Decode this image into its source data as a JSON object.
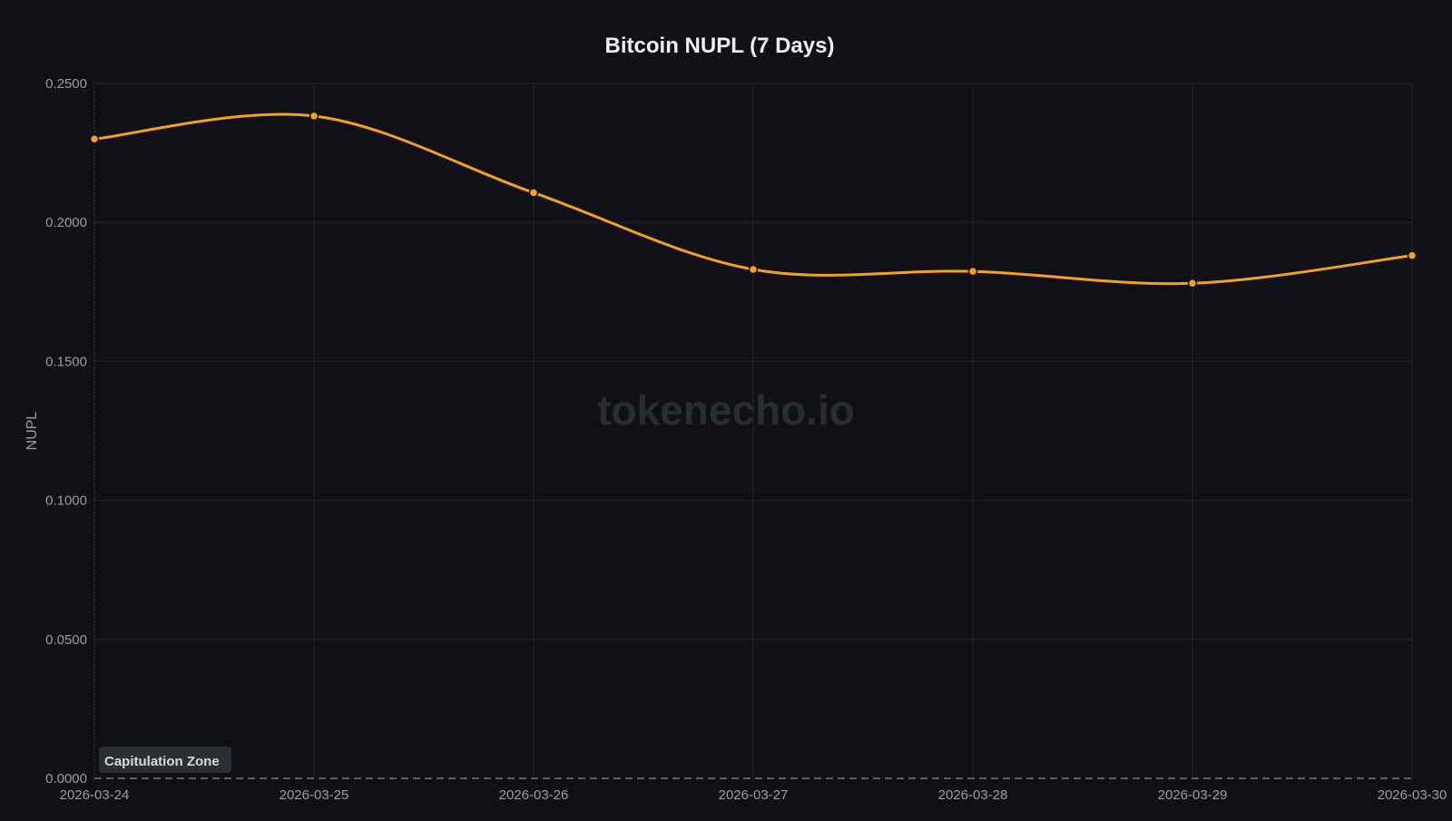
{
  "chart_data": {
    "type": "line",
    "title": "Bitcoin NUPL (7 Days)",
    "xlabel": "",
    "ylabel": "NUPL",
    "categories": [
      "2026-03-24",
      "2026-03-25",
      "2026-03-26",
      "2026-03-27",
      "2026-03-28",
      "2026-03-29",
      "2026-03-30"
    ],
    "series": [
      {
        "values": [
          0.23,
          0.2383,
          0.2107,
          0.1831,
          0.1824,
          0.1781,
          0.1881
        ],
        "color": "#f7a11a"
      }
    ],
    "ylim": [
      0,
      0.25
    ],
    "yticks": [
      "0.0000",
      "0.0500",
      "0.1000",
      "0.1500",
      "0.2000",
      "0.2500"
    ],
    "grid": true,
    "annotation": {
      "label": "Capitulation Zone",
      "y": 0
    },
    "watermark": "tokenecho.io"
  }
}
